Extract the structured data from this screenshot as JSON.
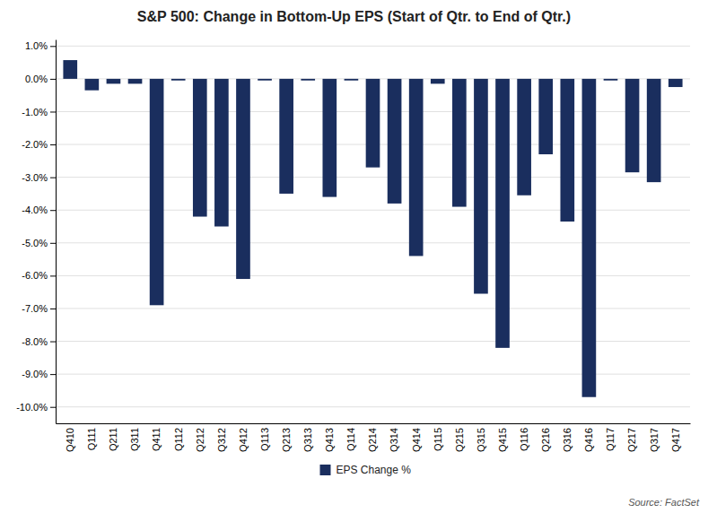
{
  "chart_data": {
    "type": "bar",
    "title": "S&P 500: Change in Bottom-Up EPS (Start of Qtr. to End of Qtr.)",
    "categories": [
      "Q410",
      "Q111",
      "Q211",
      "Q311",
      "Q411",
      "Q112",
      "Q212",
      "Q312",
      "Q412",
      "Q113",
      "Q213",
      "Q313",
      "Q413",
      "Q114",
      "Q214",
      "Q314",
      "Q414",
      "Q115",
      "Q215",
      "Q315",
      "Q415",
      "Q116",
      "Q216",
      "Q316",
      "Q416",
      "Q117",
      "Q217",
      "Q317",
      "Q417"
    ],
    "series": [
      {
        "name": "EPS Change %",
        "color": "#1a2e5e",
        "values": [
          0.57,
          -0.35,
          -0.15,
          -0.15,
          -6.9,
          -0.05,
          -4.2,
          -4.5,
          -6.1,
          -0.05,
          -3.5,
          -0.05,
          -3.6,
          -0.05,
          -2.7,
          -3.8,
          -5.4,
          -0.15,
          -3.9,
          -6.55,
          -8.2,
          -3.55,
          -2.3,
          -4.35,
          -9.7,
          -0.05,
          -2.85,
          -3.15,
          -0.25
        ]
      }
    ],
    "ylim": [
      -10.5,
      1.2
    ],
    "yticks": [
      {
        "value": 1.0,
        "label": "1.0%"
      },
      {
        "value": 0.0,
        "label": "0.0%"
      },
      {
        "value": -1.0,
        "label": "-1.0%"
      },
      {
        "value": -2.0,
        "label": "-2.0%"
      },
      {
        "value": -3.0,
        "label": "-3.0%"
      },
      {
        "value": -4.0,
        "label": "-4.0%"
      },
      {
        "value": -5.0,
        "label": "-5.0%"
      },
      {
        "value": -6.0,
        "label": "-6.0%"
      },
      {
        "value": -7.0,
        "label": "-7.0%"
      },
      {
        "value": -8.0,
        "label": "-8.0%"
      },
      {
        "value": -9.0,
        "label": "-9.0%"
      },
      {
        "value": -10.0,
        "label": "-10.0%"
      }
    ],
    "grid": true,
    "legend": "bottom",
    "annotations": [
      "Source: FactSet"
    ]
  }
}
